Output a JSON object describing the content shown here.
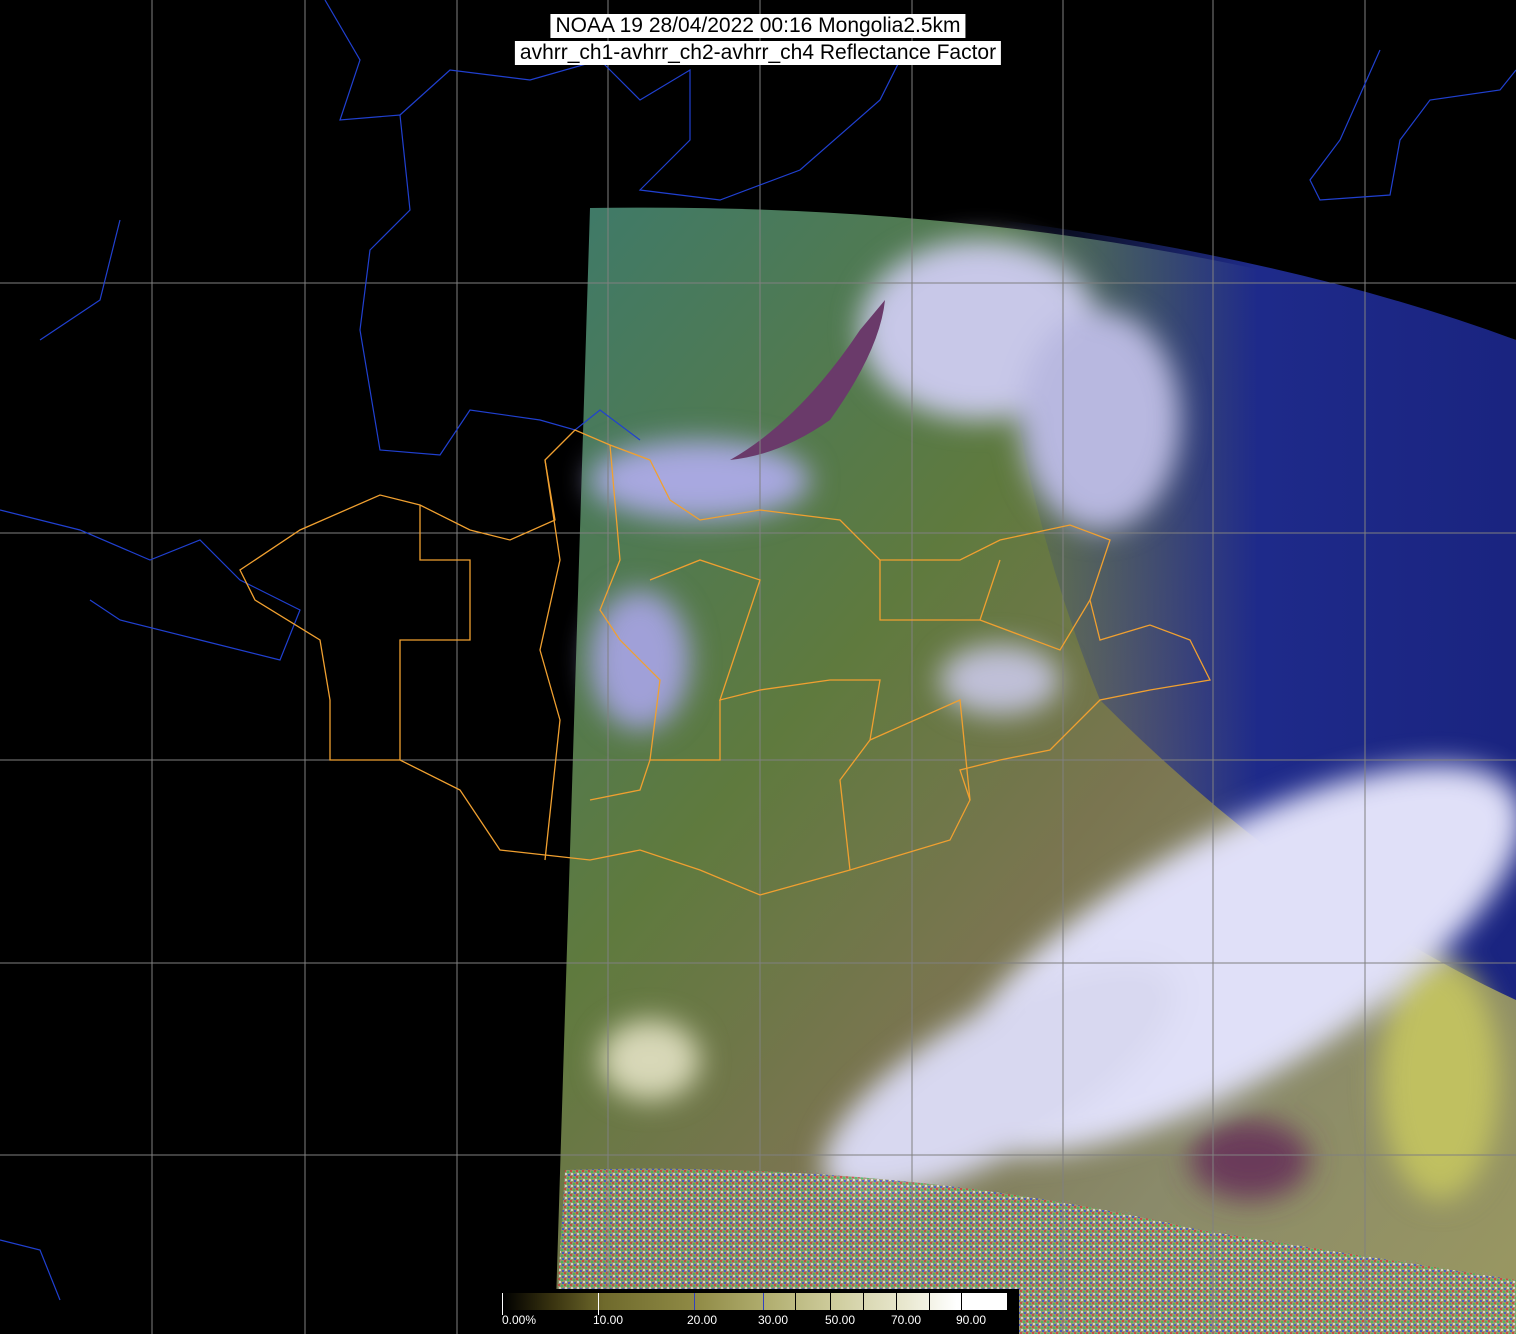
{
  "title": {
    "line1": "NOAA 19 28/04/2022 00:16 Mongolia2.5km",
    "line2": "avhrr_ch1-avhrr_ch2-avhrr_ch4 Reflectance Factor"
  },
  "colorbar": {
    "labels": [
      "0.00%",
      "10.00",
      "20.00",
      "30.00",
      "50.00",
      "70.00",
      "90.00"
    ],
    "range": [
      0,
      100
    ],
    "unit": "%"
  },
  "colors": {
    "background": "#000000",
    "grid": "#808080",
    "admin_borders": "#f0a030",
    "rivers_coast": "#2040d0"
  }
}
